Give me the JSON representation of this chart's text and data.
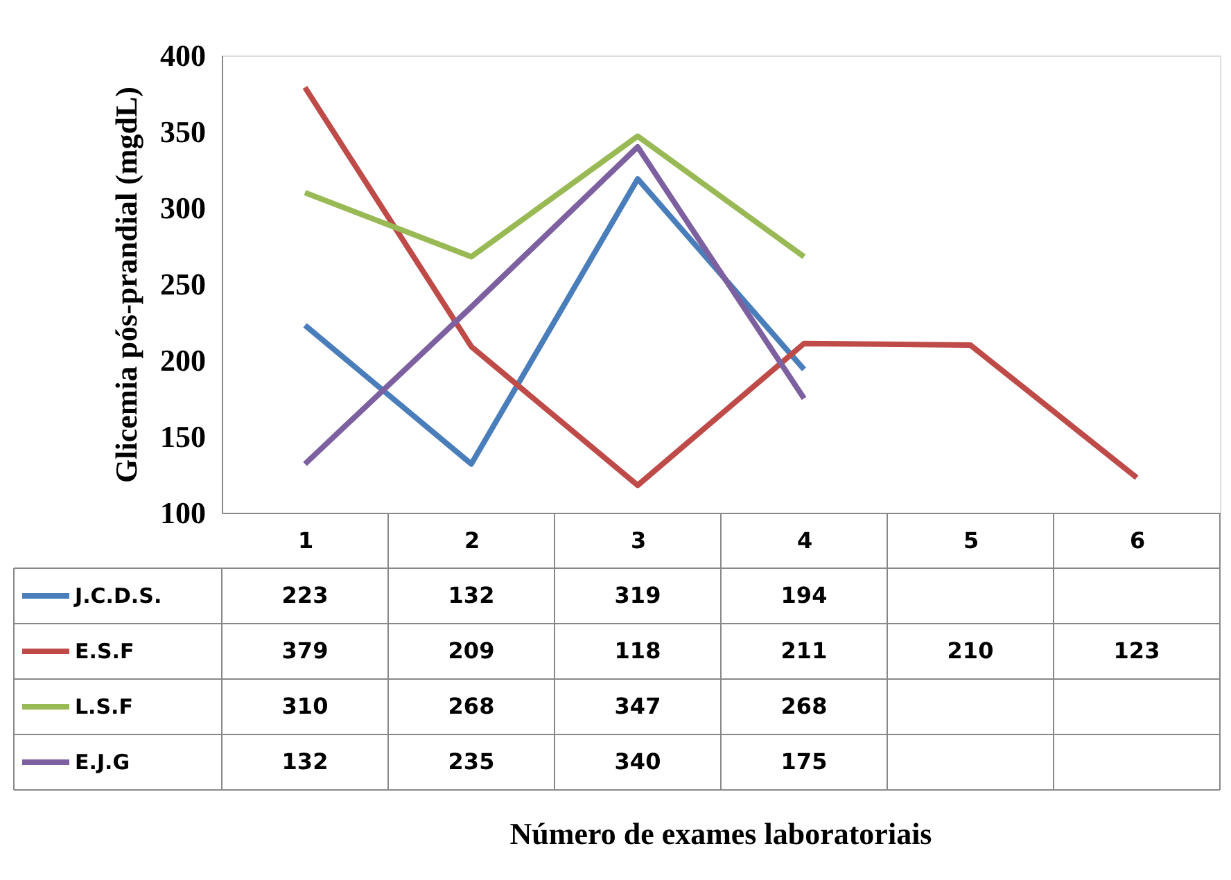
{
  "chart_data": {
    "type": "line",
    "annotations": [
      "Número de exames laboratoriais"
    ],
    "ylabel": "Glicemia pós-prandial (mgdL)",
    "categories": [
      "1",
      "2",
      "3",
      "4",
      "5",
      "6"
    ],
    "series": [
      {
        "name": "J.C.D.S.",
        "color": "#4a7ebb",
        "values": [
          223,
          132,
          319,
          194,
          null,
          null
        ]
      },
      {
        "name": "E.S.F",
        "color": "#be4b48",
        "values": [
          379,
          209,
          118,
          211,
          210,
          123
        ]
      },
      {
        "name": "L.S.F",
        "color": "#98b954",
        "values": [
          310,
          268,
          347,
          268,
          null,
          null
        ]
      },
      {
        "name": "E.J.G",
        "color": "#7d60a0",
        "values": [
          132,
          235,
          340,
          175,
          null,
          null
        ]
      }
    ],
    "ylim": [
      100,
      400
    ],
    "yticks": [
      100,
      150,
      200,
      250,
      300,
      350,
      400
    ],
    "grid": false,
    "legend": "bottom",
    "data_labels": true,
    "marker": "none",
    "line_style": "solid"
  }
}
